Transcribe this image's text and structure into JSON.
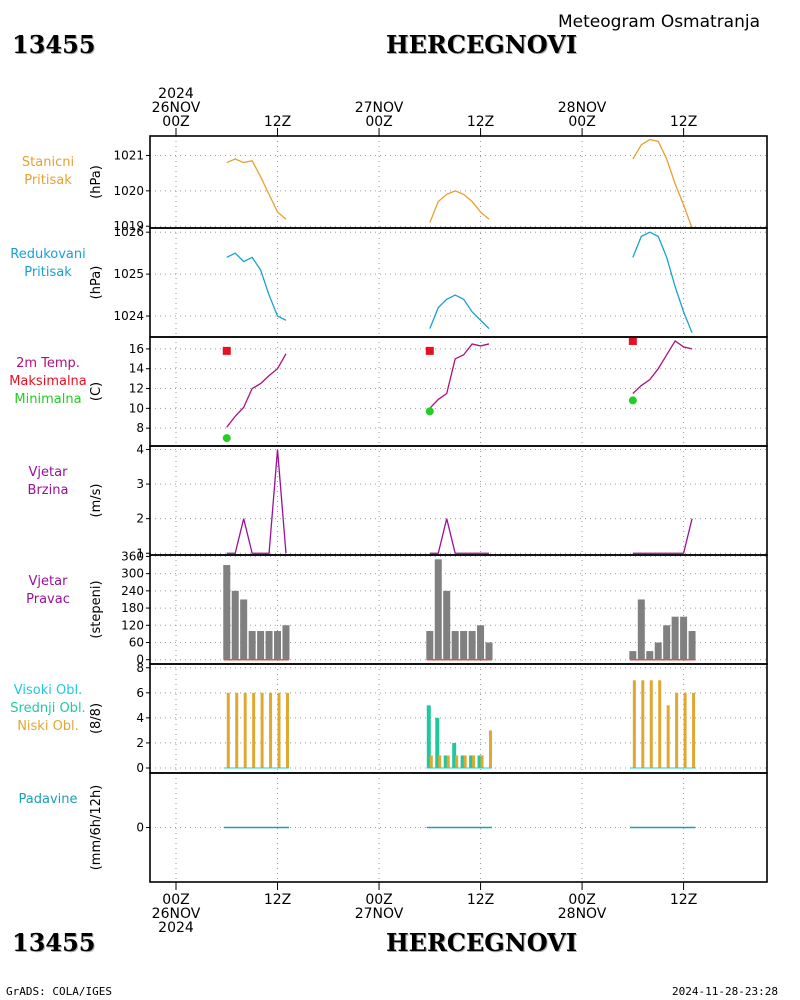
{
  "header": {
    "station_id": "13455",
    "station_name": "HERCEGNOVI",
    "product_title": "Meteogram Osmatranja"
  },
  "footer": {
    "station_id": "13455",
    "station_name": "HERCEGNOVI",
    "credit": "GrADS: COLA/IGES",
    "timestamp": "2024-11-28-23:28"
  },
  "colors": {
    "station_pressure": "#e6a030",
    "reduced_pressure": "#1aa0d0",
    "temperature": "#b0107a",
    "max_temp": "#e81020",
    "min_temp": "#20d020",
    "wind_speed": "#9a109a",
    "wind_dir_bar": "#808080",
    "wind_dir_base": "#e05050",
    "cloud_high": "#20c8e0",
    "cloud_mid": "#20c8a0",
    "cloud_low": "#e0a830",
    "precip": "#1aa0b0"
  },
  "time_axis": {
    "top_ticks": [
      {
        "lines": [
          "2024",
          "26NOV",
          "00Z"
        ],
        "hour": 0
      },
      {
        "lines": [
          "12Z"
        ],
        "hour": 12
      },
      {
        "lines": [
          "27NOV",
          "00Z"
        ],
        "hour": 24
      },
      {
        "lines": [
          "12Z"
        ],
        "hour": 36
      },
      {
        "lines": [
          "28NOV",
          "00Z"
        ],
        "hour": 48
      },
      {
        "lines": [
          "12Z"
        ],
        "hour": 60
      }
    ],
    "bottom_ticks": [
      {
        "lines": [
          "00Z",
          "26NOV",
          "2024"
        ],
        "hour": 0
      },
      {
        "lines": [
          "12Z"
        ],
        "hour": 12
      },
      {
        "lines": [
          "00Z",
          "27NOV"
        ],
        "hour": 24
      },
      {
        "lines": [
          "12Z"
        ],
        "hour": 36
      },
      {
        "lines": [
          "00Z",
          "28NOV"
        ],
        "hour": 48
      },
      {
        "lines": [
          "12Z"
        ],
        "hour": 60
      }
    ]
  },
  "chart_data": [
    {
      "type": "line",
      "panel": "station_pressure",
      "labels": [
        "Stanicni",
        "Pritisak"
      ],
      "ylabel": "(hPa)",
      "yticks": [
        1019,
        1020,
        1021
      ],
      "ylim": [
        1018.95,
        1021.55
      ],
      "series": [
        {
          "segments": [
            {
              "x": [
                6,
                7,
                8,
                9,
                10,
                11,
                12,
                13
              ],
              "y": [
                1020.8,
                1020.9,
                1020.8,
                1020.85,
                1020.4,
                1019.9,
                1019.4,
                1019.2
              ]
            },
            {
              "x": [
                30,
                31,
                32,
                33,
                34,
                35,
                36,
                37
              ],
              "y": [
                1019.1,
                1019.7,
                1019.9,
                1020.0,
                1019.9,
                1019.7,
                1019.4,
                1019.2
              ]
            },
            {
              "x": [
                54,
                55,
                56,
                57,
                58,
                59,
                60,
                61
              ],
              "y": [
                1020.9,
                1021.3,
                1021.45,
                1021.4,
                1020.9,
                1020.2,
                1019.6,
                1018.95
              ]
            }
          ]
        }
      ]
    },
    {
      "type": "line",
      "panel": "reduced_pressure",
      "labels": [
        "Redukovani",
        "Pritisak"
      ],
      "ylabel": "(hPa)",
      "yticks": [
        1024,
        1025,
        1026
      ],
      "ylim": [
        1023.5,
        1026.1
      ],
      "series": [
        {
          "segments": [
            {
              "x": [
                6,
                7,
                8,
                9,
                10,
                11,
                12,
                13
              ],
              "y": [
                1025.4,
                1025.5,
                1025.3,
                1025.4,
                1025.1,
                1024.5,
                1024.0,
                1023.9
              ]
            },
            {
              "x": [
                30,
                31,
                32,
                33,
                34,
                35,
                36,
                37
              ],
              "y": [
                1023.7,
                1024.2,
                1024.4,
                1024.5,
                1024.4,
                1024.1,
                1023.9,
                1023.7
              ]
            },
            {
              "x": [
                54,
                55,
                56,
                57,
                58,
                59,
                60,
                61
              ],
              "y": [
                1025.4,
                1025.9,
                1026.0,
                1025.9,
                1025.4,
                1024.7,
                1024.1,
                1023.6
              ]
            }
          ]
        }
      ]
    },
    {
      "type": "line",
      "panel": "temperature",
      "labels": [
        "2m Temp.",
        "Maksimalna",
        "Minimalna"
      ],
      "ylabel": "(C)",
      "yticks": [
        8,
        10,
        12,
        14,
        16
      ],
      "ylim": [
        6.2,
        17.2
      ],
      "series": [
        {
          "name": "2m Temp.",
          "segments": [
            {
              "x": [
                6,
                7,
                8,
                9,
                10,
                11,
                12,
                13
              ],
              "y": [
                8.1,
                9.2,
                10.1,
                12.0,
                12.5,
                13.3,
                14.0,
                15.5
              ]
            },
            {
              "x": [
                30,
                31,
                32,
                33,
                34,
                35,
                36,
                37
              ],
              "y": [
                10.0,
                10.9,
                11.5,
                15.0,
                15.4,
                16.5,
                16.3,
                16.5
              ]
            },
            {
              "x": [
                54,
                55,
                56,
                57,
                58,
                59,
                60,
                61
              ],
              "y": [
                11.5,
                12.3,
                12.9,
                14.0,
                15.4,
                16.8,
                16.2,
                16.0
              ]
            }
          ]
        },
        {
          "name": "Maksimalna",
          "points": [
            {
              "x": 6,
              "y": 15.8
            },
            {
              "x": 30,
              "y": 15.8
            },
            {
              "x": 54,
              "y": 16.8
            }
          ]
        },
        {
          "name": "Minimalna",
          "points": [
            {
              "x": 6,
              "y": 7.0
            },
            {
              "x": 30,
              "y": 9.7
            },
            {
              "x": 54,
              "y": 10.8
            }
          ]
        }
      ]
    },
    {
      "type": "line",
      "panel": "wind_speed",
      "labels": [
        "Vjetar",
        "Brzina"
      ],
      "ylabel": "(m/s)",
      "yticks": [
        1,
        2,
        3,
        4
      ],
      "ylim": [
        0.95,
        4.1
      ],
      "series": [
        {
          "segments": [
            {
              "x": [
                6,
                7,
                8,
                9,
                10,
                11,
                12,
                13
              ],
              "y": [
                1,
                1,
                2,
                1,
                1,
                1,
                4,
                1
              ]
            },
            {
              "x": [
                30,
                31,
                32,
                33,
                34,
                35,
                36,
                37
              ],
              "y": [
                1,
                1,
                2,
                1,
                1,
                1,
                1,
                1
              ]
            },
            {
              "x": [
                54,
                55,
                56,
                57,
                58,
                59,
                60,
                61
              ],
              "y": [
                1,
                1,
                1,
                1,
                1,
                1,
                1,
                2
              ]
            }
          ]
        }
      ]
    },
    {
      "type": "bar",
      "panel": "wind_direction",
      "labels": [
        "Vjetar",
        "Pravac"
      ],
      "ylabel": "(stepeni)",
      "yticks": [
        0,
        60,
        120,
        180,
        240,
        300,
        360
      ],
      "ylim": [
        -15,
        365
      ],
      "x": [
        6,
        7,
        8,
        9,
        10,
        11,
        12,
        13,
        30,
        31,
        32,
        33,
        34,
        35,
        36,
        37,
        54,
        55,
        56,
        57,
        58,
        59,
        60,
        61
      ],
      "values": [
        330,
        240,
        210,
        100,
        100,
        100,
        100,
        120,
        100,
        350,
        240,
        100,
        100,
        100,
        120,
        60,
        30,
        210,
        30,
        60,
        120,
        150,
        150,
        100
      ]
    },
    {
      "type": "bar",
      "panel": "clouds",
      "labels": [
        "Visoki Obl.",
        "Srednji Obl.",
        "Niski Obl."
      ],
      "ylabel": "(8/8)",
      "yticks": [
        0,
        2,
        4,
        6,
        8
      ],
      "ylim": [
        -0.4,
        8.3
      ],
      "x": [
        6,
        7,
        8,
        9,
        10,
        11,
        12,
        13,
        30,
        31,
        32,
        33,
        34,
        35,
        36,
        37,
        54,
        55,
        56,
        57,
        58,
        59,
        60,
        61
      ],
      "series": [
        {
          "name": "Visoki Obl.",
          "values": [
            0,
            0,
            0,
            0,
            0,
            0,
            0,
            0,
            0,
            0,
            0,
            0,
            0,
            0,
            0,
            0,
            0,
            0,
            0,
            0,
            0,
            0,
            0,
            0
          ]
        },
        {
          "name": "Srednji Obl.",
          "values": [
            0,
            0,
            0,
            0,
            0,
            0,
            0,
            0,
            5,
            4,
            1,
            2,
            1,
            1,
            1,
            0,
            0,
            0,
            0,
            0,
            0,
            0,
            0,
            0
          ]
        },
        {
          "name": "Niski Obl.",
          "values": [
            6,
            6,
            6,
            6,
            6,
            6,
            6,
            6,
            1,
            1,
            1,
            1,
            1,
            1,
            1,
            3,
            7,
            7,
            7,
            7,
            5,
            6,
            6,
            6
          ]
        }
      ]
    },
    {
      "type": "bar",
      "panel": "precipitation",
      "labels": [
        "Padavine"
      ],
      "ylabel": "(mm/6h/12h)",
      "yticks": [
        0
      ],
      "ylim": [
        -5,
        5
      ],
      "x": [
        6,
        7,
        8,
        9,
        10,
        11,
        12,
        13,
        30,
        31,
        32,
        33,
        34,
        35,
        36,
        37,
        54,
        55,
        56,
        57,
        58,
        59,
        60,
        61
      ],
      "values": [
        0,
        0,
        0,
        0,
        0,
        0,
        0,
        0,
        0,
        0,
        0,
        0,
        0,
        0,
        0,
        0,
        0,
        0,
        0,
        0,
        0,
        0,
        0,
        0
      ]
    }
  ]
}
